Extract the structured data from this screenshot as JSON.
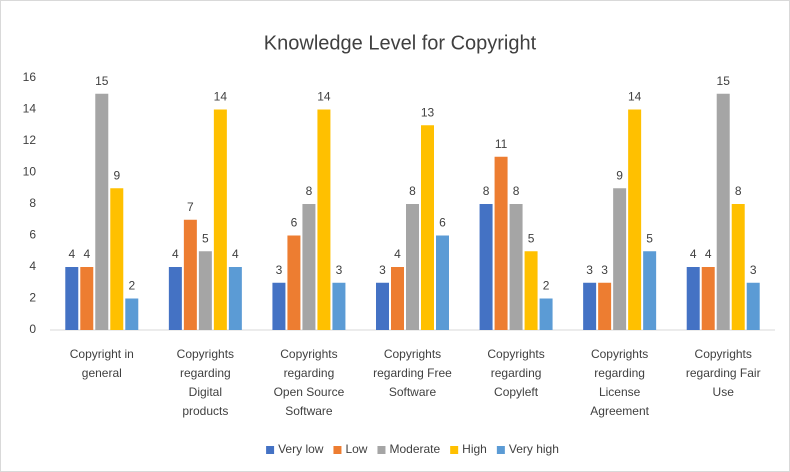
{
  "chart_data": {
    "type": "bar",
    "title": "Knowledge Level for Copyright",
    "categories": [
      "Copyright in general",
      "Copyrights regarding Digital products",
      "Copyrights regarding Open Source Software",
      "Copyrights regarding Free Software",
      "Copyrights regarding Copyleft",
      "Copyrights regarding License Agreement",
      "Copyrights regarding Fair Use"
    ],
    "series": [
      {
        "name": "Very low",
        "color": "#4472c4",
        "values": [
          4,
          4,
          3,
          3,
          8,
          3,
          4
        ]
      },
      {
        "name": "Low",
        "color": "#ed7d31",
        "values": [
          4,
          7,
          6,
          4,
          11,
          3,
          4
        ]
      },
      {
        "name": "Moderate",
        "color": "#a5a5a5",
        "values": [
          15,
          5,
          8,
          8,
          8,
          9,
          15
        ]
      },
      {
        "name": "High",
        "color": "#ffc000",
        "values": [
          9,
          14,
          14,
          13,
          5,
          14,
          8
        ]
      },
      {
        "name": "Very high",
        "color": "#5b9bd5",
        "values": [
          2,
          4,
          3,
          6,
          2,
          5,
          3
        ]
      }
    ],
    "ylim": [
      0,
      16
    ],
    "yticks": [
      0,
      2,
      4,
      6,
      8,
      10,
      12,
      14,
      16
    ],
    "grid": false,
    "legend": "bottom"
  }
}
